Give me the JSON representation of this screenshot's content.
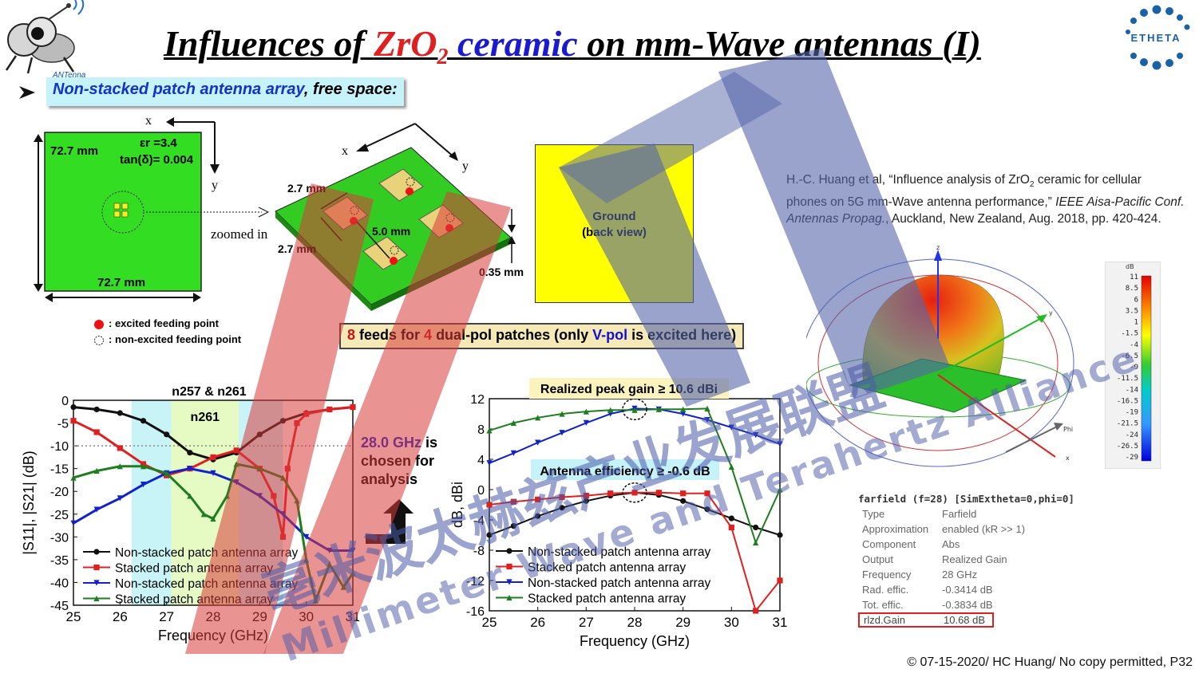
{
  "slide": {
    "title": {
      "part1": "Influences of ",
      "part2": "ZrO",
      "sub": "2",
      "part3": " ceramic",
      "part4": " on mm-Wave antennas (I)"
    },
    "subtitle": {
      "part1": "Non-stacked patch antenna array",
      "part2": ", free space:"
    },
    "footer": "© 07-15-2020/ HC Huang/ No copy permitted, P32"
  },
  "logos": {
    "mascot_text": "ANTenna",
    "brand_text": "ETHETA"
  },
  "top_view": {
    "width_label": "72.7 mm",
    "height_label": "72.7 mm",
    "epsilon_label": "εr =3.4",
    "tan_label": "tan(δ)= 0.004",
    "axis_x": "x",
    "axis_y": "y",
    "zoomed_label": "zoomed in"
  },
  "legend_points": {
    "excited": ": excited feeding point",
    "non_excited": ": non-excited feeding point"
  },
  "iso_view": {
    "axis_x": "x",
    "axis_y": "y",
    "patch_w": "2.7 mm",
    "patch_h": "2.7 mm",
    "spacing": "5.0 mm",
    "thickness": "0.35 mm"
  },
  "ground_box": {
    "line1": "Ground",
    "line2": "(back view)"
  },
  "feeds_note": {
    "p1": "8",
    "p2": " feeds for ",
    "p3": "4",
    "p4": " dual-pol patches (only ",
    "p5": "V-pol",
    "p6": " is excited here)"
  },
  "citation": {
    "p1": "H.-C. Huang et al, “Influence analysis of ZrO",
    "sub": "2",
    "p2": " ceramic for cellular phones on 5G mm-Wave antenna performance,” ",
    "italic": "IEEE Aisa-Pacific Conf. Antennas Propag.",
    "p3": ", Auckland, New Zealand, Aug. 2018, pp. 420-424."
  },
  "ghz_note": {
    "freq": "28.0 GHz",
    "rest": " is chosen for analysis"
  },
  "farfield": {
    "header": "farfield (f=28) [SimExtheta=0,phi=0]",
    "rows": [
      {
        "k": "Type",
        "v": "Farfield"
      },
      {
        "k": "Approximation",
        "v": "enabled (kR >> 1)"
      },
      {
        "k": "Component",
        "v": "Abs"
      },
      {
        "k": "Output",
        "v": "Realized Gain"
      },
      {
        "k": "Frequency",
        "v": "28 GHz"
      },
      {
        "k": "Rad. effic.",
        "v": "-0.3414 dB"
      },
      {
        "k": "Tot. effic.",
        "v": "-0.3834 dB"
      },
      {
        "k": "rlzd.Gain",
        "v": "10.68 dB"
      }
    ],
    "colorbar_unit": "dB",
    "colorbar_ticks": [
      "11",
      "8.5",
      "6",
      "3.5",
      "1",
      "-1.5",
      "-4",
      "-6.5",
      "-9",
      "-11.5",
      "-14",
      "-16.5",
      "-19",
      "-21.5",
      "-24",
      "-26.5",
      "-29"
    ],
    "axes": {
      "z": "z",
      "y": "y",
      "phi": "Phi",
      "x": "x"
    }
  },
  "watermarks": [
    "亳米波太赫兹产业发展联盟",
    "Millimeter Wave and Terahertz Alliance"
  ],
  "chart_data": [
    {
      "type": "line",
      "title": "n257 & n261",
      "band_label": "n261",
      "xlabel": "Frequency (GHz)",
      "ylabel": "|S11|, |S21| (dB)",
      "xlim": [
        25,
        31
      ],
      "ylim": [
        -45,
        0
      ],
      "xticks": [
        25,
        26,
        27,
        28,
        29,
        30,
        31
      ],
      "yticks": [
        0,
        -5,
        -10,
        -15,
        -20,
        -25,
        -30,
        -35,
        -40,
        -45
      ],
      "reference_line": -10,
      "bands": [
        {
          "name": "n257",
          "from": 26.25,
          "to": 29.5,
          "color": "#c8f4f8"
        },
        {
          "name": "n261",
          "from": 27.1,
          "to": 28.55,
          "color": "#e6fbc4"
        }
      ],
      "series": [
        {
          "name": "Non-stacked patch antenna array",
          "color": "#111111",
          "marker": "circle",
          "x": [
            25,
            25.5,
            26,
            26.5,
            27,
            27.5,
            28,
            28.5,
            29,
            29.5,
            30,
            30.5,
            31
          ],
          "y": [
            -1.5,
            -2,
            -2.8,
            -4.5,
            -7.5,
            -11.5,
            -13,
            -11.5,
            -7.5,
            -4.5,
            -2.8,
            -2,
            -1.5
          ]
        },
        {
          "name": "Stacked patch antenna array",
          "color": "#e02020",
          "marker": "square",
          "x": [
            25,
            25.5,
            26,
            26.5,
            27,
            27.5,
            28,
            28.5,
            29,
            29.3,
            29.5,
            29.6,
            29.8,
            30,
            30.5,
            31
          ],
          "y": [
            -4.5,
            -7,
            -10.5,
            -14,
            -16.5,
            -15,
            -12.5,
            -11,
            -15,
            -21,
            -30,
            -15,
            -5,
            -3,
            -2,
            -1.5
          ]
        },
        {
          "name": "Non-stacked patch antenna array",
          "color": "#1122cc",
          "marker": "triangle-down",
          "x": [
            25,
            25.5,
            26,
            26.5,
            27,
            27.5,
            28,
            28.5,
            29,
            29.5,
            30,
            30.5,
            31
          ],
          "y": [
            -27,
            -24,
            -21.5,
            -18.5,
            -16,
            -15,
            -16,
            -18,
            -21,
            -25,
            -30,
            -33,
            -33
          ]
        },
        {
          "name": "Stacked patch antenna array",
          "color": "#1e7d1e",
          "marker": "triangle-up",
          "x": [
            25,
            25.5,
            26,
            26.5,
            27,
            27.5,
            27.8,
            28,
            28.3,
            28.5,
            29,
            29.5,
            29.8,
            30,
            30.2,
            30.5,
            30.8,
            31
          ],
          "y": [
            -17,
            -15.5,
            -14.5,
            -14.5,
            -16,
            -21,
            -25,
            -26,
            -21,
            -14,
            -15,
            -17,
            -22,
            -35,
            -44,
            -36,
            -41,
            -38
          ]
        }
      ]
    },
    {
      "type": "line",
      "title": "",
      "annotations": [
        "Realized peak gain ≥ 10.6 dBi",
        "Antenna efficiency ≥ -0.6 dB"
      ],
      "xlabel": "Frequency (GHz)",
      "ylabel": "dB, dBi",
      "xlim": [
        25,
        31
      ],
      "ylim": [
        -16,
        12
      ],
      "xticks": [
        25,
        26,
        27,
        28,
        29,
        30,
        31
      ],
      "yticks": [
        12,
        8,
        4,
        0,
        -4,
        -8,
        -12,
        -16
      ],
      "marker_x": 28,
      "series": [
        {
          "name": "Non-stacked patch antenna array",
          "color": "#111111",
          "marker": "circle",
          "x": [
            25,
            25.5,
            26,
            26.5,
            27,
            27.5,
            28,
            28.5,
            29,
            29.5,
            30,
            30.5,
            31
          ],
          "y": [
            -6,
            -4.8,
            -3.5,
            -2.4,
            -1.5,
            -0.8,
            -0.4,
            -0.7,
            -1.5,
            -2.6,
            -3.8,
            -5,
            -6
          ]
        },
        {
          "name": "Stacked patch antenna array",
          "color": "#e02020",
          "marker": "square",
          "x": [
            25,
            25.5,
            26,
            26.5,
            27,
            27.5,
            28,
            28.5,
            29,
            29.5,
            30,
            30.5,
            31
          ],
          "y": [
            -2,
            -1.6,
            -1.3,
            -1,
            -0.8,
            -0.5,
            -0.4,
            -0.4,
            -0.5,
            -0.5,
            -5,
            -16,
            -12
          ]
        },
        {
          "name": "Non-stacked patch antenna array",
          "color": "#1122cc",
          "marker": "triangle-down",
          "x": [
            25,
            25.5,
            26,
            26.5,
            27,
            27.5,
            28,
            28.5,
            29,
            29.5,
            30,
            30.5,
            31
          ],
          "y": [
            3.5,
            4.8,
            6.2,
            7.5,
            8.8,
            10,
            10.7,
            10.6,
            10,
            9.2,
            8.2,
            7.2,
            6
          ]
        },
        {
          "name": "Stacked patch antenna array",
          "color": "#1e7d1e",
          "marker": "triangle-up",
          "x": [
            25,
            25.5,
            26,
            26.5,
            27,
            27.5,
            28,
            28.5,
            29,
            29.5,
            30,
            30.5,
            31
          ],
          "y": [
            7.8,
            8.8,
            9.5,
            10,
            10.3,
            10.5,
            10.5,
            10.6,
            10.6,
            10.7,
            3,
            -7,
            0
          ]
        }
      ]
    }
  ]
}
